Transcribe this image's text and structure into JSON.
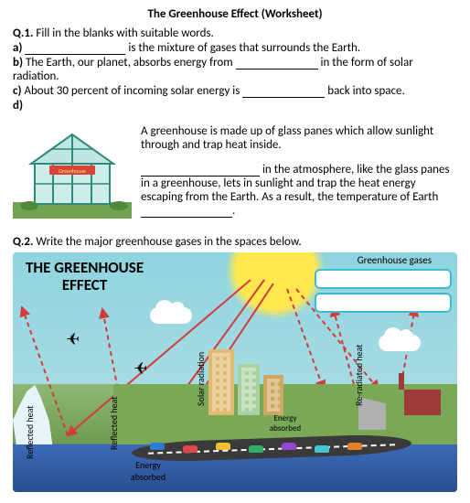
{
  "title": "The Greenhouse Effect (Worksheet)",
  "q1": {
    "heading": "Q.1.",
    "prompt": "Fill in the blanks with suitable words.",
    "a_label": "a)",
    "a_after": "is the mixture of gases that surrounds the Earth.",
    "b_label": "b)",
    "b_before": "The Earth, our planet, absorbs energy from",
    "b_after": "in the form of solar radiation.",
    "c_label": "c)",
    "c_before": "About 30 percent of incoming solar energy is",
    "c_after": "back into space.",
    "d_label": "d)"
  },
  "para": {
    "p1": "A greenhouse is made up of glass panes which allow sunlight through and trap heat inside.",
    "p2_after": "in the atmosphere, like the glass panes in a greenhouse, lets in sunlight and trap the heat energy escaping from the Earth. As a result, the temperature of Earth",
    "p2_end": "."
  },
  "greenhouse_sign": "Greenhouse",
  "q2": {
    "heading": "Q.2.",
    "prompt": "Write the major greenhouse gases in the spaces below."
  },
  "diagram": {
    "title_line1": "THE GREENHOUSE",
    "title_line2": "EFFECT",
    "gh_gases_label": "Greenhouse gases",
    "labels": {
      "reflected_heat": "Reflected heat",
      "solar_radiation": "Solar radiation",
      "re_radiated_heat": "Re-radiated heat",
      "energy_absorbed": "Energy absorbed",
      "energy_absorbed2": "Energy absorbed"
    },
    "ray_color_solid": "#d23b3b",
    "ray_color_dashed": "#d23b3b",
    "answer_box_border": "#3dbcd4",
    "car_colors": [
      "#2c7bd1",
      "#e04848",
      "#f0c233",
      "#33b06a",
      "#9348d1",
      "#48c5d1",
      "#e07f2e"
    ]
  }
}
